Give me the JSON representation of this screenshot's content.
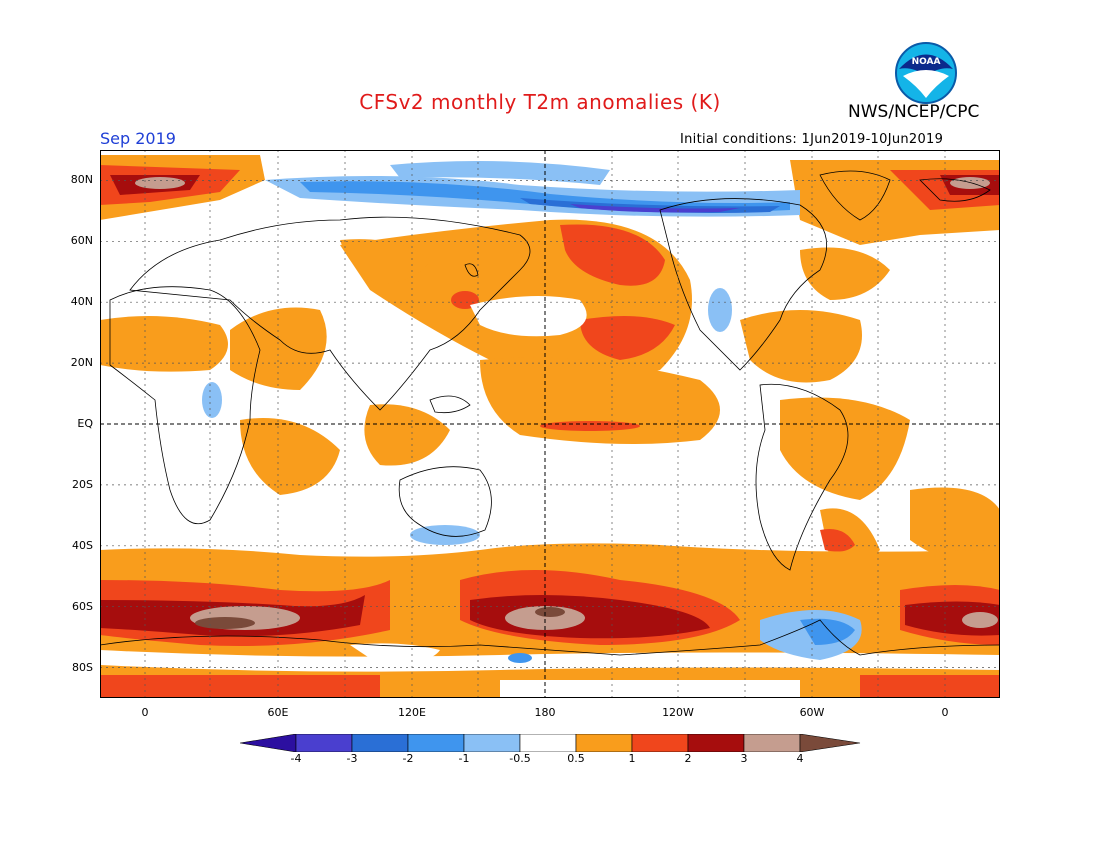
{
  "title": "CFSv2 monthly T2m anomalies (K)",
  "agency": "NWS/NCEP/CPC",
  "logo_text": "NOAA",
  "month": "Sep 2019",
  "initial_conditions": "Initial conditions: 1Jun2019-10Jun2019",
  "lat_labels": [
    "80N",
    "60N",
    "40N",
    "20N",
    "EQ",
    "20S",
    "40S",
    "60S",
    "80S"
  ],
  "lon_labels": [
    "0",
    "60E",
    "120E",
    "180",
    "120W",
    "60W",
    "0"
  ],
  "colorbar": {
    "labels": [
      "-4",
      "-3",
      "-2",
      "-1",
      "-0.5",
      "0.5",
      "1",
      "2",
      "3",
      "4"
    ],
    "colors": [
      "#2c0fa0",
      "#4a3fcf",
      "#2a6fd6",
      "#3f95ee",
      "#8ac0f5",
      "#ffffff",
      "#f99d1c",
      "#f0461c",
      "#a60d0d",
      "#c59d8f",
      "#7a4a3a"
    ]
  }
}
